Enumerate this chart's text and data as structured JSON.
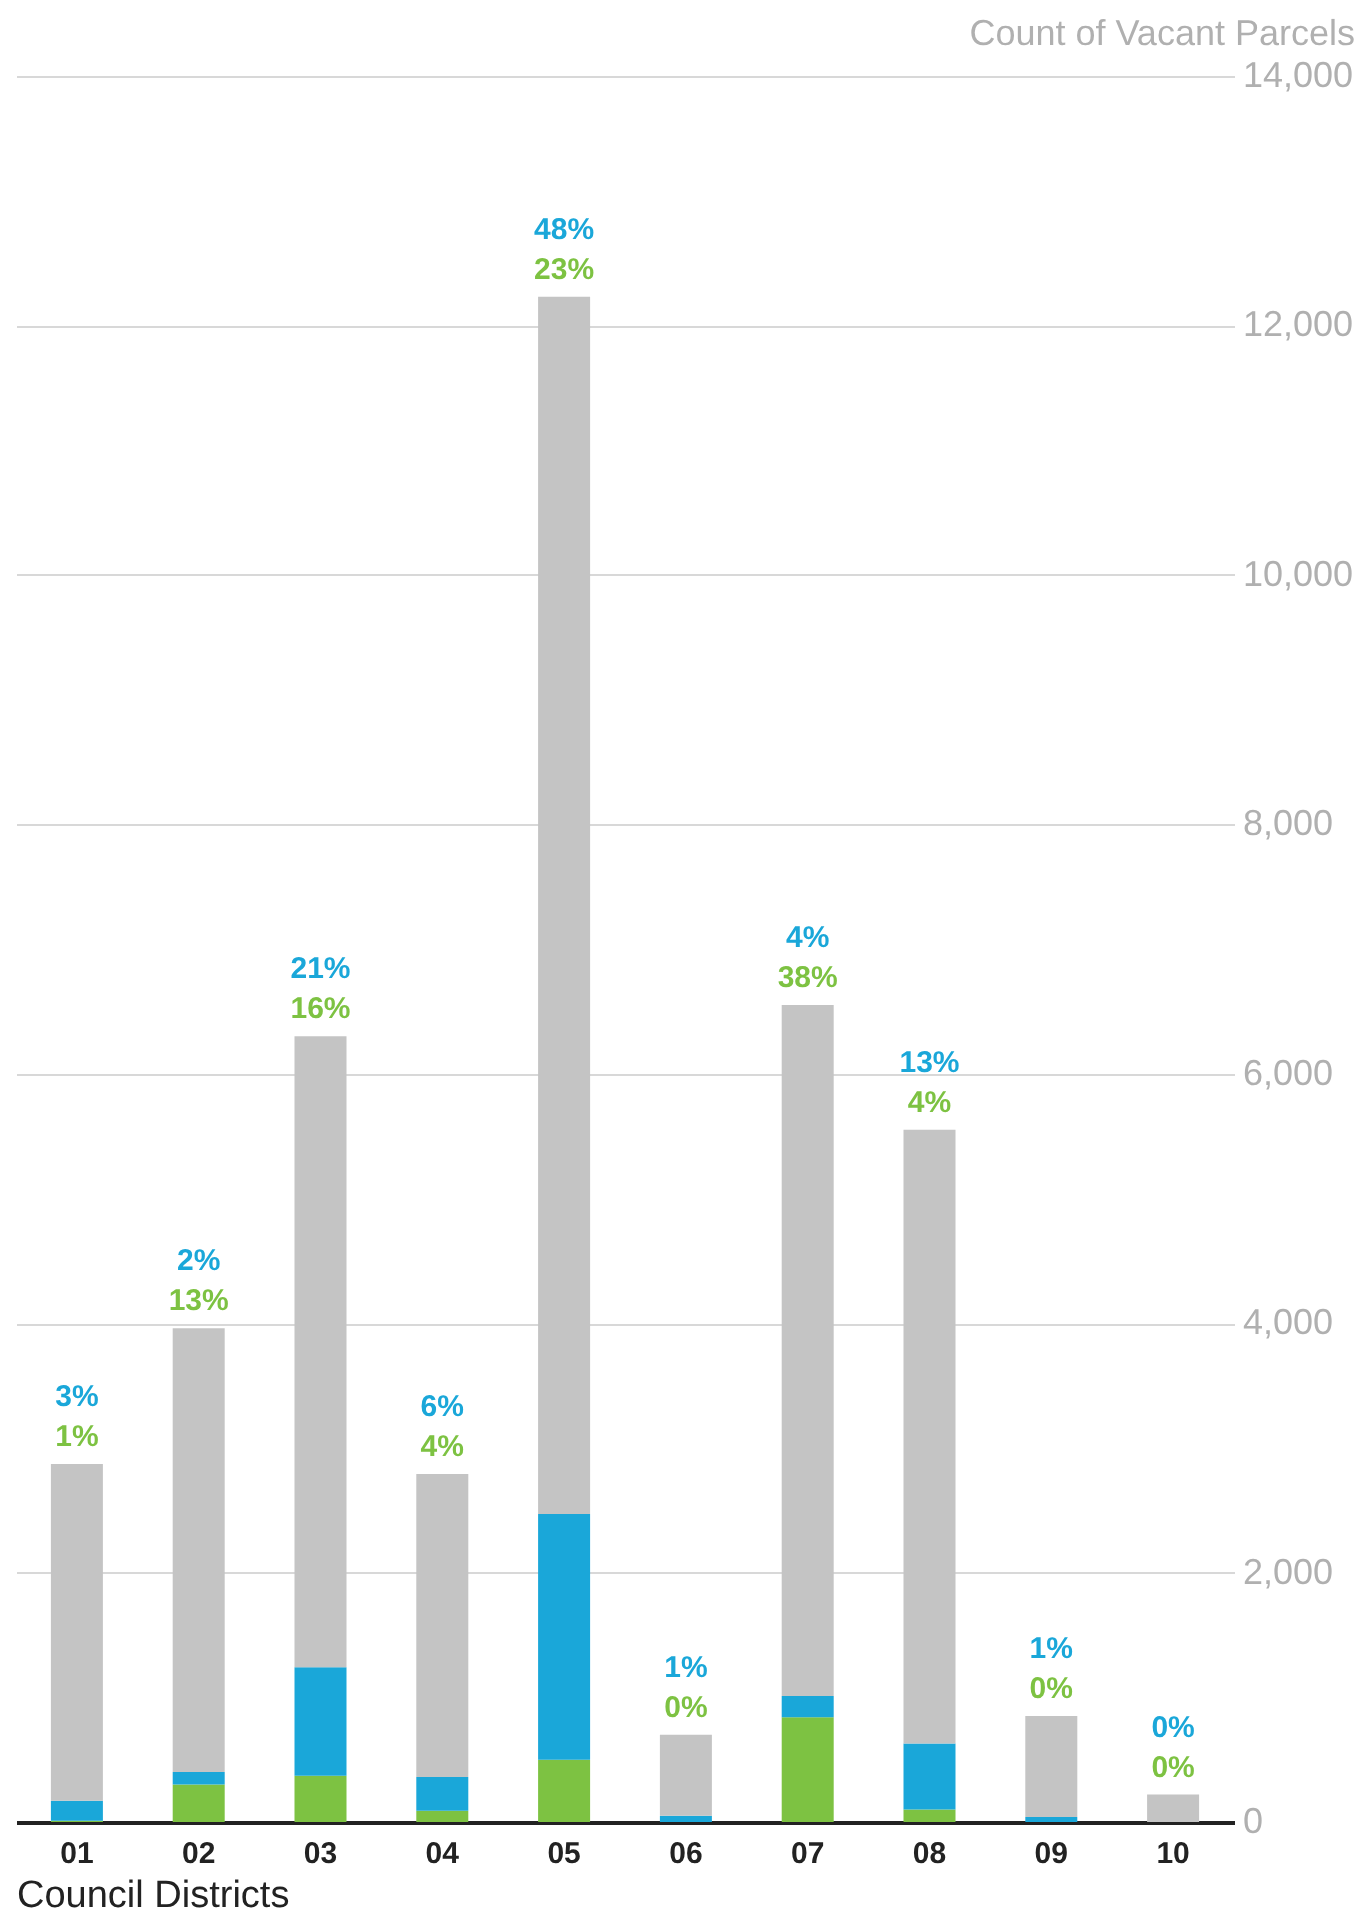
{
  "chart_data": {
    "type": "bar",
    "stacked": true,
    "ylabel": "Count of Vacant Parcels",
    "xlabel": "Council Districts",
    "categories": [
      "01",
      "02",
      "03",
      "04",
      "05",
      "06",
      "07",
      "08",
      "09",
      "10"
    ],
    "series": [
      {
        "color": "#7dc242",
        "values": [
          10,
          300,
          370,
          90,
          500,
          0,
          840,
          100,
          0,
          0
        ]
      },
      {
        "color": "#1aa7d9",
        "values": [
          160,
          100,
          870,
          270,
          1970,
          50,
          170,
          530,
          40,
          0
        ]
      },
      {
        "color": "#c4c4c4",
        "values": [
          2700,
          3560,
          5060,
          2430,
          9760,
          650,
          5540,
          4920,
          810,
          220
        ]
      }
    ],
    "annotations": [
      {
        "text": "3%",
        "x": "01",
        "y": 2870
      },
      {
        "text": "1%",
        "x": "01",
        "y": 2870
      },
      {
        "text": "2%",
        "x": "02",
        "y": 3960
      },
      {
        "text": "13%",
        "x": "02",
        "y": 3960
      },
      {
        "text": "21%",
        "x": "03",
        "y": 6300
      },
      {
        "text": "16%",
        "x": "03",
        "y": 6300
      },
      {
        "text": "6%",
        "x": "04",
        "y": 2790
      },
      {
        "text": "4%",
        "x": "04",
        "y": 2790
      },
      {
        "text": "48%",
        "x": "05",
        "y": 12230
      },
      {
        "text": "23%",
        "x": "05",
        "y": 12230
      },
      {
        "text": "1%",
        "x": "06",
        "y": 700
      },
      {
        "text": "0%",
        "x": "06",
        "y": 700
      },
      {
        "text": "4%",
        "x": "07",
        "y": 6550
      },
      {
        "text": "38%",
        "x": "07",
        "y": 6550
      },
      {
        "text": "13%",
        "x": "08",
        "y": 5550
      },
      {
        "text": "4%",
        "x": "08",
        "y": 5550
      },
      {
        "text": "1%",
        "x": "09",
        "y": 850
      },
      {
        "text": "0%",
        "x": "09",
        "y": 850
      },
      {
        "text": "0%",
        "x": "10",
        "y": 220
      },
      {
        "text": "0%",
        "x": "10",
        "y": 220
      }
    ],
    "ylim": [
      0,
      14000
    ],
    "yticks": [
      0,
      {
        "value": 2000,
        "label": "2,000"
      },
      {
        "value": 4000,
        "label": "4,000"
      },
      {
        "value": 6000,
        "label": "6,000"
      },
      {
        "value": 8000,
        "label": "8,000"
      },
      {
        "value": 10000,
        "label": "10,000"
      },
      {
        "value": 12000,
        "label": "12,000"
      },
      {
        "value": 14000,
        "label": "14,000"
      }
    ],
    "grid": "y",
    "legend": false
  }
}
